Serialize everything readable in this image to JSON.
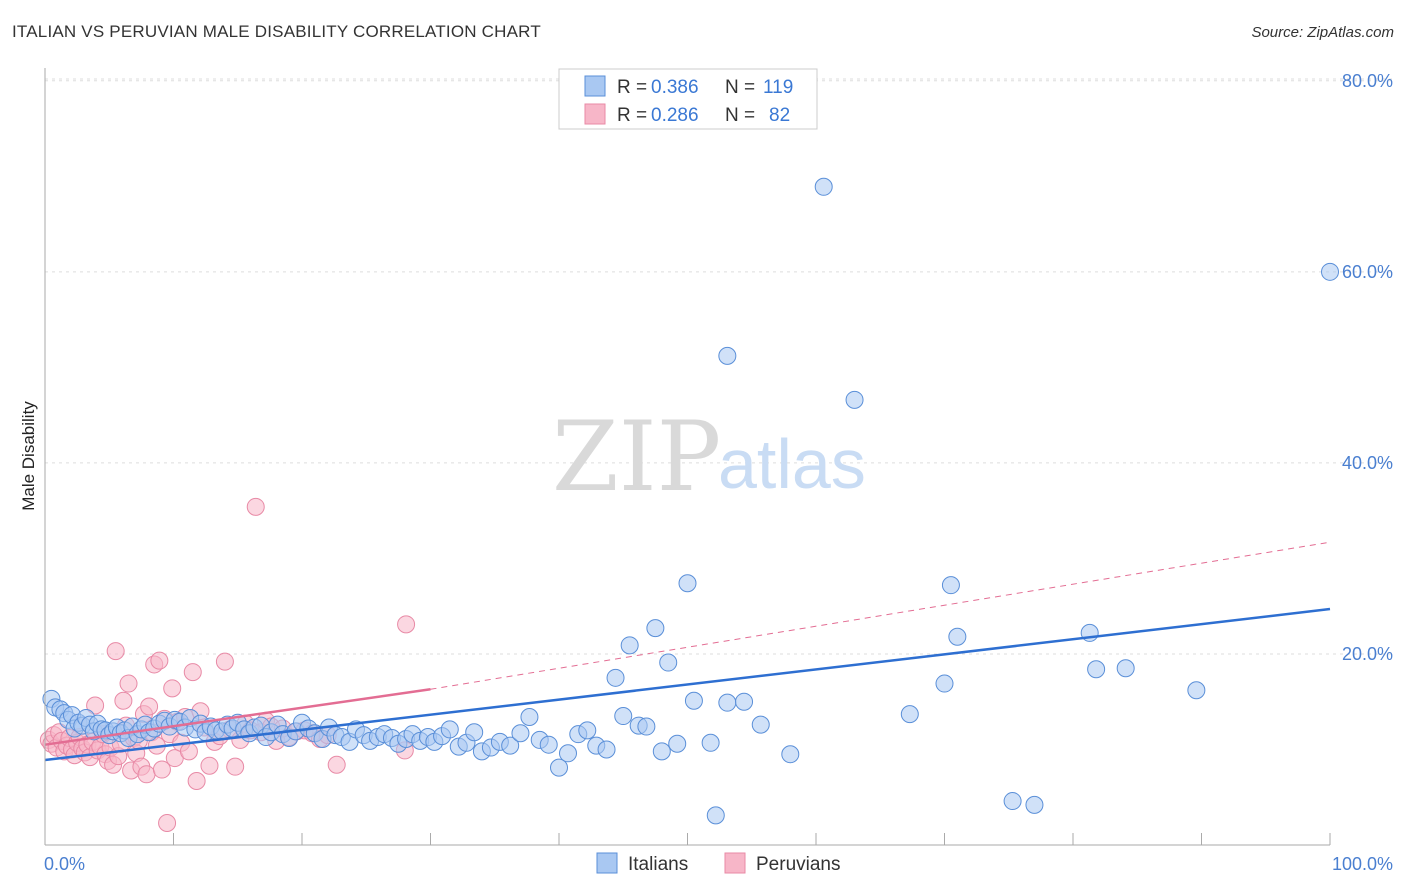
{
  "title": "ITALIAN VS PERUVIAN MALE DISABILITY CORRELATION CHART",
  "source": "Source: ZipAtlas.com",
  "watermark": {
    "zip": "ZIP",
    "atlas": "atlas"
  },
  "colors": {
    "blue_fill": "#a9c8f2",
    "blue_stroke": "#5a8fd8",
    "blue_line": "#2e6fd1",
    "pink_fill": "#f7b6c8",
    "pink_stroke": "#e88aa6",
    "pink_line": "#e36d93",
    "tick": "#4a7fd0",
    "grid": "#dddddd"
  },
  "legend": [
    {
      "r_label": "R =",
      "r_value": "0.386",
      "n_label": "N =",
      "n_value": "119"
    },
    {
      "r_label": "R =",
      "r_value": "0.286",
      "n_label": "N =",
      "n_value": "82"
    }
  ],
  "chart_data": {
    "type": "scatter",
    "title": "ITALIAN VS PERUVIAN MALE DISABILITY CORRELATION CHART",
    "xlabel": "",
    "ylabel": "Male Disability",
    "xlim": [
      0,
      100
    ],
    "ylim": [
      0,
      80
    ],
    "x_tick_labels": [
      "0.0%",
      "100.0%"
    ],
    "y_ticks": [
      20,
      40,
      60,
      80
    ],
    "y_tick_labels": [
      "20.0%",
      "40.0%",
      "60.0%",
      "80.0%"
    ],
    "legend_position": "top-center",
    "series": [
      {
        "name": "Italians",
        "r": 0.386,
        "n": 119,
        "trend": {
          "x0": 0,
          "y0": 8.9,
          "x1": 100,
          "y1": 24.7
        },
        "points": [
          [
            0.5,
            15.3
          ],
          [
            0.8,
            14.4
          ],
          [
            1.2,
            14.2
          ],
          [
            1.5,
            13.8
          ],
          [
            1.8,
            13.1
          ],
          [
            2.1,
            13.6
          ],
          [
            2.3,
            12.2
          ],
          [
            2.6,
            12.8
          ],
          [
            2.9,
            12.5
          ],
          [
            3.2,
            13.3
          ],
          [
            3.5,
            12.6
          ],
          [
            3.8,
            11.9
          ],
          [
            4.1,
            12.7
          ],
          [
            4.4,
            12.1
          ],
          [
            4.7,
            12.0
          ],
          [
            5.0,
            11.5
          ],
          [
            5.3,
            11.9
          ],
          [
            5.6,
            12.3
          ],
          [
            5.9,
            11.7
          ],
          [
            6.2,
            12.0
          ],
          [
            6.5,
            11.2
          ],
          [
            6.8,
            12.4
          ],
          [
            7.2,
            11.6
          ],
          [
            7.5,
            12.1
          ],
          [
            7.8,
            12.6
          ],
          [
            8.1,
            11.8
          ],
          [
            8.5,
            12.2
          ],
          [
            8.9,
            12.7
          ],
          [
            9.3,
            13.0
          ],
          [
            9.7,
            12.4
          ],
          [
            10.1,
            13.1
          ],
          [
            10.5,
            12.9
          ],
          [
            10.9,
            12.3
          ],
          [
            11.3,
            13.3
          ],
          [
            11.7,
            12.1
          ],
          [
            12.1,
            12.7
          ],
          [
            12.5,
            11.8
          ],
          [
            12.9,
            12.4
          ],
          [
            13.3,
            12.0
          ],
          [
            13.8,
            11.9
          ],
          [
            14.2,
            12.6
          ],
          [
            14.6,
            12.2
          ],
          [
            15.0,
            12.8
          ],
          [
            15.5,
            12.1
          ],
          [
            15.9,
            11.7
          ],
          [
            16.3,
            12.3
          ],
          [
            16.8,
            12.5
          ],
          [
            17.2,
            11.3
          ],
          [
            17.6,
            11.8
          ],
          [
            18.1,
            12.6
          ],
          [
            18.5,
            11.6
          ],
          [
            19.0,
            11.2
          ],
          [
            19.5,
            11.9
          ],
          [
            20.0,
            12.8
          ],
          [
            20.5,
            12.2
          ],
          [
            21.0,
            11.7
          ],
          [
            21.6,
            11.1
          ],
          [
            22.1,
            12.3
          ],
          [
            22.6,
            11.5
          ],
          [
            23.1,
            11.3
          ],
          [
            23.7,
            10.8
          ],
          [
            24.2,
            12.1
          ],
          [
            24.8,
            11.5
          ],
          [
            25.3,
            10.9
          ],
          [
            25.9,
            11.3
          ],
          [
            26.4,
            11.6
          ],
          [
            27.0,
            11.2
          ],
          [
            27.5,
            10.6
          ],
          [
            28.1,
            11.1
          ],
          [
            28.6,
            11.6
          ],
          [
            29.2,
            10.9
          ],
          [
            29.8,
            11.3
          ],
          [
            30.3,
            10.8
          ],
          [
            30.9,
            11.4
          ],
          [
            31.5,
            12.1
          ],
          [
            32.2,
            10.3
          ],
          [
            32.8,
            10.7
          ],
          [
            33.4,
            11.8
          ],
          [
            34.0,
            9.8
          ],
          [
            34.7,
            10.2
          ],
          [
            35.4,
            10.8
          ],
          [
            36.2,
            10.4
          ],
          [
            37.0,
            11.7
          ],
          [
            37.7,
            13.4
          ],
          [
            38.5,
            11.0
          ],
          [
            39.2,
            10.5
          ],
          [
            40.0,
            8.1
          ],
          [
            40.7,
            9.6
          ],
          [
            41.5,
            11.6
          ],
          [
            42.2,
            12.0
          ],
          [
            42.9,
            10.4
          ],
          [
            43.7,
            10.0
          ],
          [
            44.4,
            17.5
          ],
          [
            45.0,
            13.5
          ],
          [
            45.5,
            20.9
          ],
          [
            46.2,
            12.5
          ],
          [
            46.8,
            12.4
          ],
          [
            47.5,
            22.7
          ],
          [
            48.0,
            9.8
          ],
          [
            48.5,
            19.1
          ],
          [
            49.2,
            10.6
          ],
          [
            50.0,
            27.4
          ],
          [
            50.5,
            15.1
          ],
          [
            51.8,
            10.7
          ],
          [
            52.2,
            3.1
          ],
          [
            53.1,
            14.9
          ],
          [
            53.1,
            51.2
          ],
          [
            54.4,
            15.0
          ],
          [
            55.7,
            12.6
          ],
          [
            58.0,
            9.5
          ],
          [
            60.6,
            68.9
          ],
          [
            63.0,
            46.6
          ],
          [
            67.3,
            13.7
          ],
          [
            70.0,
            16.9
          ],
          [
            70.5,
            27.2
          ],
          [
            71.0,
            21.8
          ],
          [
            75.3,
            4.6
          ],
          [
            77.0,
            4.2
          ],
          [
            81.3,
            22.2
          ],
          [
            81.8,
            18.4
          ],
          [
            84.1,
            18.5
          ],
          [
            89.6,
            16.2
          ],
          [
            100.0,
            60.0
          ]
        ]
      },
      {
        "name": "Peruvians",
        "r": 0.286,
        "n": 82,
        "trend": {
          "x0": 0,
          "y0": 10.5,
          "x1": 30,
          "y1": 16.3
        },
        "trend_dashed": {
          "x0": 30,
          "y0": 16.3,
          "x1": 100,
          "y1": 31.7
        },
        "points": [
          [
            0.3,
            11.0
          ],
          [
            0.5,
            10.6
          ],
          [
            0.7,
            11.5
          ],
          [
            0.9,
            10.2
          ],
          [
            1.1,
            11.8
          ],
          [
            1.3,
            10.9
          ],
          [
            1.5,
            9.8
          ],
          [
            1.7,
            10.4
          ],
          [
            1.9,
            11.2
          ],
          [
            2.1,
            10.0
          ],
          [
            2.3,
            9.4
          ],
          [
            2.5,
            10.7
          ],
          [
            2.7,
            11.3
          ],
          [
            2.9,
            10.1
          ],
          [
            3.1,
            9.7
          ],
          [
            3.3,
            10.5
          ],
          [
            3.5,
            9.2
          ],
          [
            3.7,
            10.8
          ],
          [
            3.9,
            14.6
          ],
          [
            4.1,
            9.9
          ],
          [
            4.3,
            10.3
          ],
          [
            4.5,
            11.6
          ],
          [
            4.7,
            9.5
          ],
          [
            4.9,
            8.8
          ],
          [
            5.1,
            10.2
          ],
          [
            5.3,
            8.4
          ],
          [
            5.5,
            20.3
          ],
          [
            5.7,
            9.3
          ],
          [
            5.9,
            10.6
          ],
          [
            6.1,
            15.1
          ],
          [
            6.3,
            12.5
          ],
          [
            6.5,
            16.9
          ],
          [
            6.7,
            7.8
          ],
          [
            6.9,
            11.2
          ],
          [
            7.1,
            9.6
          ],
          [
            7.3,
            10.9
          ],
          [
            7.5,
            8.2
          ],
          [
            7.7,
            13.7
          ],
          [
            7.9,
            7.4
          ],
          [
            8.1,
            14.5
          ],
          [
            8.3,
            11.8
          ],
          [
            8.5,
            18.9
          ],
          [
            8.7,
            10.4
          ],
          [
            8.9,
            19.3
          ],
          [
            9.1,
            7.9
          ],
          [
            9.3,
            13.2
          ],
          [
            9.5,
            2.3
          ],
          [
            9.7,
            11.6
          ],
          [
            9.9,
            16.4
          ],
          [
            10.1,
            9.1
          ],
          [
            10.3,
            12.9
          ],
          [
            10.6,
            10.7
          ],
          [
            10.9,
            13.4
          ],
          [
            11.2,
            9.8
          ],
          [
            11.5,
            18.1
          ],
          [
            11.8,
            6.7
          ],
          [
            12.1,
            14.0
          ],
          [
            12.4,
            12.3
          ],
          [
            12.8,
            8.3
          ],
          [
            13.2,
            10.8
          ],
          [
            13.6,
            11.4
          ],
          [
            14.0,
            19.2
          ],
          [
            14.4,
            12.1
          ],
          [
            14.8,
            8.2
          ],
          [
            15.2,
            11.0
          ],
          [
            15.6,
            12.7
          ],
          [
            16.0,
            12.0
          ],
          [
            16.4,
            35.4
          ],
          [
            16.8,
            11.8
          ],
          [
            17.2,
            13.0
          ],
          [
            17.6,
            12.4
          ],
          [
            18.0,
            10.9
          ],
          [
            18.5,
            12.2
          ],
          [
            19.0,
            11.3
          ],
          [
            19.6,
            11.9
          ],
          [
            20.2,
            12.0
          ],
          [
            20.8,
            11.7
          ],
          [
            21.4,
            11.1
          ],
          [
            22.0,
            11.5
          ],
          [
            22.7,
            8.4
          ],
          [
            28.0,
            9.9
          ],
          [
            28.1,
            23.1
          ]
        ]
      }
    ]
  },
  "bottom_legend": [
    "Italians",
    "Peruvians"
  ]
}
